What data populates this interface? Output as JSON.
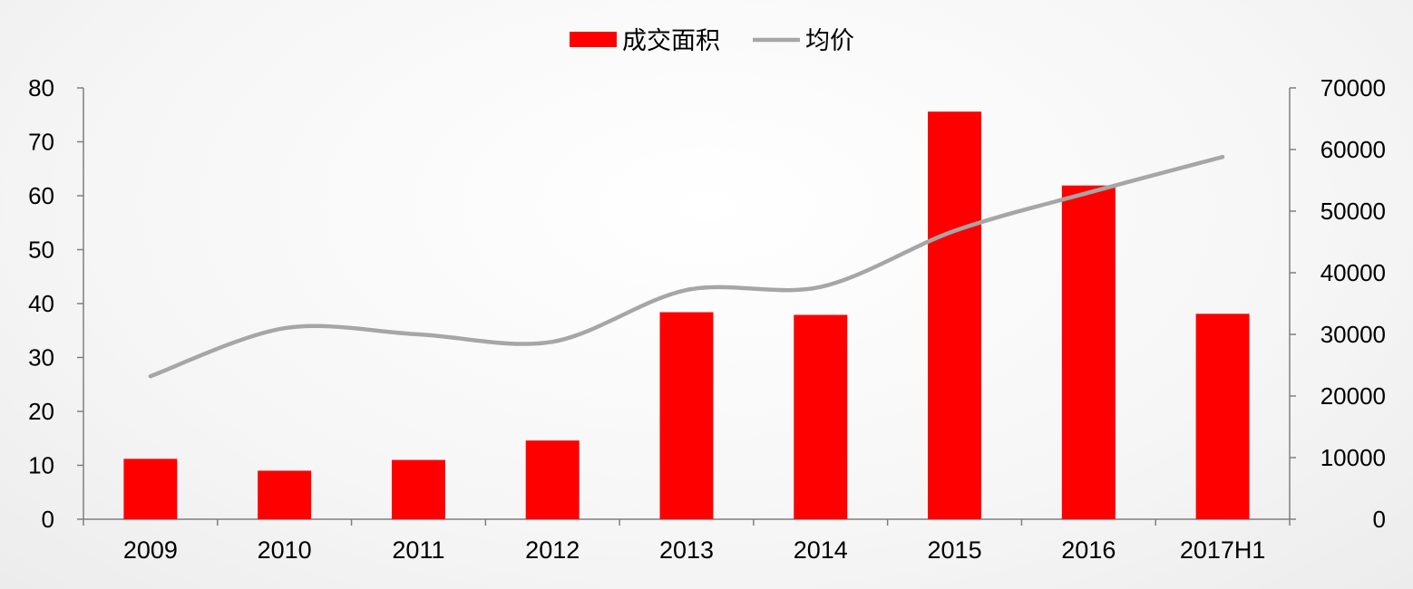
{
  "chart_data": {
    "type": "bar",
    "categories": [
      "2009",
      "2010",
      "2011",
      "2012",
      "2013",
      "2014",
      "2015",
      "2016",
      "2017H1"
    ],
    "series": [
      {
        "name": "成交面积",
        "type": "bar",
        "axis": "left",
        "color": "#ff0000",
        "values": [
          11.2,
          9.0,
          11.0,
          14.6,
          38.4,
          37.9,
          75.6,
          61.9,
          38.1
        ]
      },
      {
        "name": "均价",
        "type": "line",
        "axis": "right",
        "color": "#a6a6a6",
        "values": [
          23200,
          31000,
          30000,
          28800,
          37200,
          37700,
          46800,
          53000,
          58800
        ]
      }
    ],
    "y_left": {
      "min": 0,
      "max": 80,
      "step": 10,
      "ticks": [
        "0",
        "10",
        "20",
        "30",
        "40",
        "50",
        "60",
        "70",
        "80"
      ]
    },
    "y_right": {
      "min": 0,
      "max": 70000,
      "step": 10000,
      "ticks": [
        "0",
        "10000",
        "20000",
        "30000",
        "40000",
        "50000",
        "60000",
        "70000"
      ]
    },
    "legend": {
      "position": "top-center"
    },
    "grid": false
  }
}
